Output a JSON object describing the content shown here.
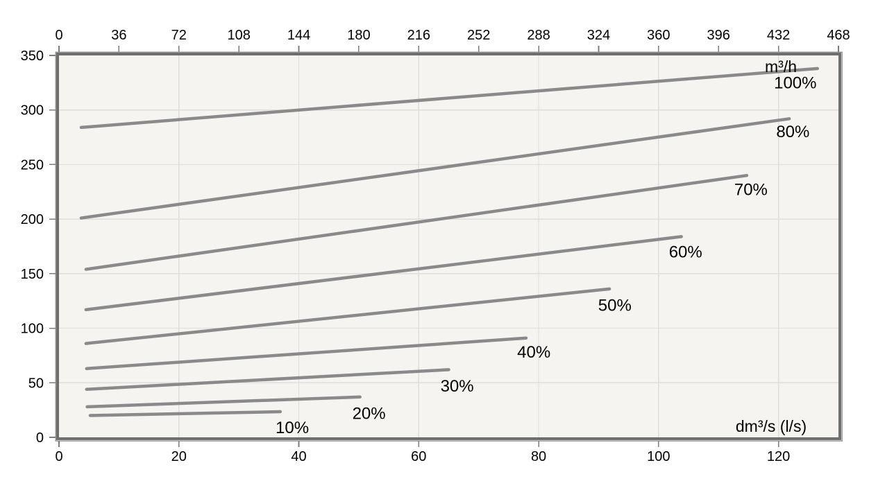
{
  "chart_data": {
    "type": "line",
    "title": "",
    "top_axis": {
      "unit": "m³/h",
      "range": [
        0,
        468
      ],
      "ticks": [
        0,
        36,
        72,
        108,
        144,
        180,
        216,
        252,
        288,
        324,
        360,
        396,
        432,
        468
      ]
    },
    "bottom_axis": {
      "unit": "dm³/s (l/s)",
      "range": [
        0,
        130
      ],
      "ticks": [
        0,
        20,
        40,
        60,
        80,
        100,
        120
      ]
    },
    "y_axis": {
      "range": [
        0,
        350
      ],
      "ticks": [
        0,
        50,
        100,
        150,
        200,
        250,
        300,
        350
      ]
    },
    "grid": {
      "vertical_at_bottom_ticks": true,
      "horizontal_at_y_ticks": true
    },
    "series": [
      {
        "name": "100%",
        "points": [
          [
            3.7,
            284
          ],
          [
            126.5,
            338
          ]
        ],
        "label_at": [
          122.8,
          325
        ]
      },
      {
        "name": "80%",
        "points": [
          [
            3.7,
            201
          ],
          [
            121.8,
            292
          ]
        ],
        "label_at": [
          122.4,
          280
        ]
      },
      {
        "name": "70%",
        "points": [
          [
            4.5,
            154
          ],
          [
            114.7,
            240
          ]
        ],
        "label_at": [
          115.4,
          227
        ]
      },
      {
        "name": "60%",
        "points": [
          [
            4.5,
            117
          ],
          [
            103.8,
            184
          ]
        ],
        "label_at": [
          104.5,
          170
        ]
      },
      {
        "name": "50%",
        "points": [
          [
            4.5,
            86
          ],
          [
            91.8,
            136
          ]
        ],
        "label_at": [
          92.7,
          121
        ]
      },
      {
        "name": "40%",
        "points": [
          [
            4.6,
            63
          ],
          [
            77.9,
            91
          ]
        ],
        "label_at": [
          79.2,
          78
        ]
      },
      {
        "name": "30%",
        "points": [
          [
            4.6,
            44
          ],
          [
            65.0,
            62
          ]
        ],
        "label_at": [
          66.4,
          47
        ]
      },
      {
        "name": "20%",
        "points": [
          [
            4.7,
            28
          ],
          [
            50.2,
            37
          ]
        ],
        "label_at": [
          51.7,
          22
        ]
      },
      {
        "name": "10%",
        "points": [
          [
            5.2,
            20
          ],
          [
            36.9,
            23.5
          ]
        ],
        "label_at": [
          38.9,
          9
        ]
      }
    ],
    "colors": {
      "curve": "#8a8a8a",
      "grid": "#e0ddda",
      "frame": "#6e6e6e",
      "frame_outer": "#9a9896",
      "tick": "#7c7c7c",
      "plot_bg": "#f5f4f1",
      "page_bg": "#ffffff",
      "text": "#000000"
    }
  }
}
